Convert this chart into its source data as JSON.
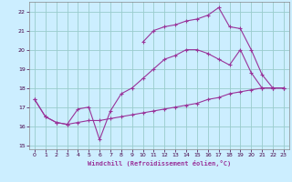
{
  "xlabel": "Windchill (Refroidissement éolien,°C)",
  "bg_color": "#cceeff",
  "line_color": "#993399",
  "grid_color": "#99cccc",
  "xlim": [
    -0.5,
    23.5
  ],
  "ylim": [
    14.8,
    22.5
  ],
  "xticks": [
    0,
    1,
    2,
    3,
    4,
    5,
    6,
    7,
    8,
    9,
    10,
    11,
    12,
    13,
    14,
    15,
    16,
    17,
    18,
    19,
    20,
    21,
    22,
    23
  ],
  "yticks": [
    15,
    16,
    17,
    18,
    19,
    20,
    21,
    22
  ],
  "series": [
    {
      "x": [
        0,
        1,
        2,
        3,
        4,
        5,
        6,
        7,
        8,
        9,
        10,
        11,
        12,
        13,
        14,
        15,
        16,
        17,
        18,
        19,
        20,
        21,
        22,
        23
      ],
      "y": [
        17.4,
        16.5,
        16.2,
        16.1,
        16.2,
        16.3,
        16.3,
        16.4,
        16.5,
        16.6,
        16.7,
        16.8,
        16.9,
        17.0,
        17.1,
        17.2,
        17.4,
        17.5,
        17.7,
        17.8,
        17.9,
        18.0,
        18.0,
        18.0
      ]
    },
    {
      "x": [
        0,
        1,
        2,
        3,
        4,
        5,
        6,
        7,
        8,
        9,
        10,
        11,
        12,
        13,
        14,
        15,
        16,
        17,
        18,
        19,
        20,
        21,
        22,
        23
      ],
      "y": [
        17.4,
        16.5,
        16.2,
        16.1,
        16.9,
        17.0,
        15.3,
        16.8,
        17.7,
        18.0,
        18.5,
        19.0,
        19.5,
        19.7,
        20.0,
        20.0,
        19.8,
        19.5,
        19.2,
        20.0,
        18.8,
        18.0,
        18.0,
        18.0
      ]
    },
    {
      "x": [
        10,
        11,
        12,
        13,
        14,
        15,
        16,
        17,
        18,
        19,
        20,
        21,
        22,
        23
      ],
      "y": [
        20.4,
        21.0,
        21.2,
        21.3,
        21.5,
        21.6,
        21.8,
        22.2,
        21.2,
        21.1,
        20.0,
        18.7,
        18.0,
        18.0
      ]
    }
  ]
}
